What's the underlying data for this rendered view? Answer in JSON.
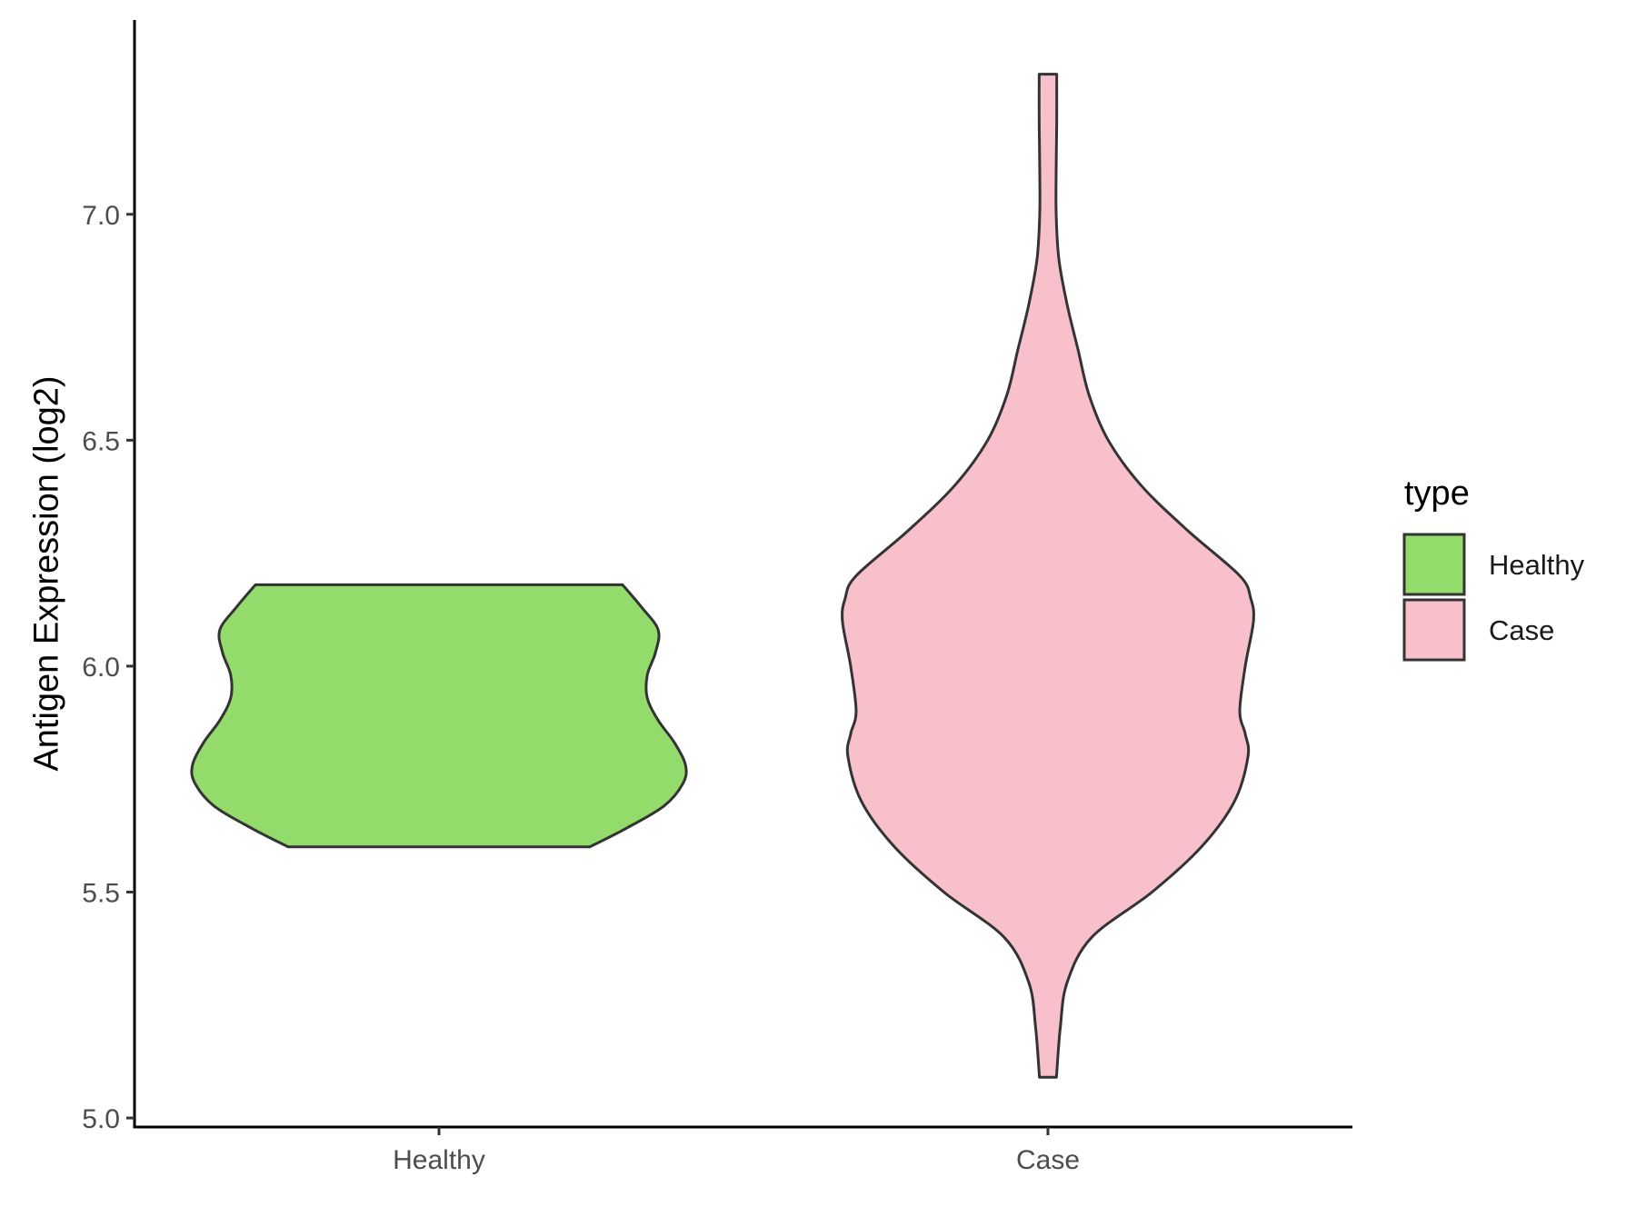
{
  "chart_data": {
    "type": "violin",
    "categories": [
      "Healthy",
      "Case"
    ],
    "ylabel": "Antigen Expression (log2)",
    "xlabel": "",
    "ylim": [
      4.98,
      7.43
    ],
    "yticks": [
      5.0,
      5.5,
      6.0,
      6.5,
      7.0
    ],
    "ytick_labels": [
      "5.0",
      "5.5",
      "6.0",
      "6.5",
      "7.0"
    ],
    "grid": false,
    "legend": {
      "title": "type",
      "position": "right",
      "entries": [
        {
          "label": "Healthy",
          "color": "#93dc6b"
        },
        {
          "label": "Case",
          "color": "#f7c0cb"
        }
      ]
    },
    "series": [
      {
        "name": "Healthy",
        "color": "#93dc6b",
        "min": 5.6,
        "max": 6.18,
        "density_profile": [
          {
            "y": 5.6,
            "w": 0.55
          },
          {
            "y": 5.64,
            "w": 0.68
          },
          {
            "y": 5.69,
            "w": 0.82
          },
          {
            "y": 5.74,
            "w": 0.89
          },
          {
            "y": 5.78,
            "w": 0.9
          },
          {
            "y": 5.83,
            "w": 0.86
          },
          {
            "y": 5.88,
            "w": 0.8
          },
          {
            "y": 5.93,
            "w": 0.76
          },
          {
            "y": 5.98,
            "w": 0.76
          },
          {
            "y": 6.03,
            "w": 0.79
          },
          {
            "y": 6.08,
            "w": 0.8
          },
          {
            "y": 6.13,
            "w": 0.74
          },
          {
            "y": 6.18,
            "w": 0.67
          }
        ]
      },
      {
        "name": "Case",
        "color": "#f7c0cb",
        "min": 5.09,
        "max": 7.31,
        "density_profile": [
          {
            "y": 5.09,
            "w": 0.031
          },
          {
            "y": 5.2,
            "w": 0.045
          },
          {
            "y": 5.3,
            "w": 0.07
          },
          {
            "y": 5.4,
            "w": 0.16
          },
          {
            "y": 5.5,
            "w": 0.38
          },
          {
            "y": 5.6,
            "w": 0.56
          },
          {
            "y": 5.7,
            "w": 0.68
          },
          {
            "y": 5.8,
            "w": 0.73
          },
          {
            "y": 5.85,
            "w": 0.72
          },
          {
            "y": 5.9,
            "w": 0.7
          },
          {
            "y": 6.0,
            "w": 0.72
          },
          {
            "y": 6.1,
            "w": 0.75
          },
          {
            "y": 6.15,
            "w": 0.74
          },
          {
            "y": 6.2,
            "w": 0.7
          },
          {
            "y": 6.3,
            "w": 0.51
          },
          {
            "y": 6.4,
            "w": 0.34
          },
          {
            "y": 6.5,
            "w": 0.22
          },
          {
            "y": 6.6,
            "w": 0.15
          },
          {
            "y": 6.7,
            "w": 0.11
          },
          {
            "y": 6.8,
            "w": 0.07
          },
          {
            "y": 6.9,
            "w": 0.04
          },
          {
            "y": 7.0,
            "w": 0.03
          },
          {
            "y": 7.1,
            "w": 0.03
          },
          {
            "y": 7.2,
            "w": 0.032
          },
          {
            "y": 7.31,
            "w": 0.032
          }
        ]
      }
    ]
  }
}
